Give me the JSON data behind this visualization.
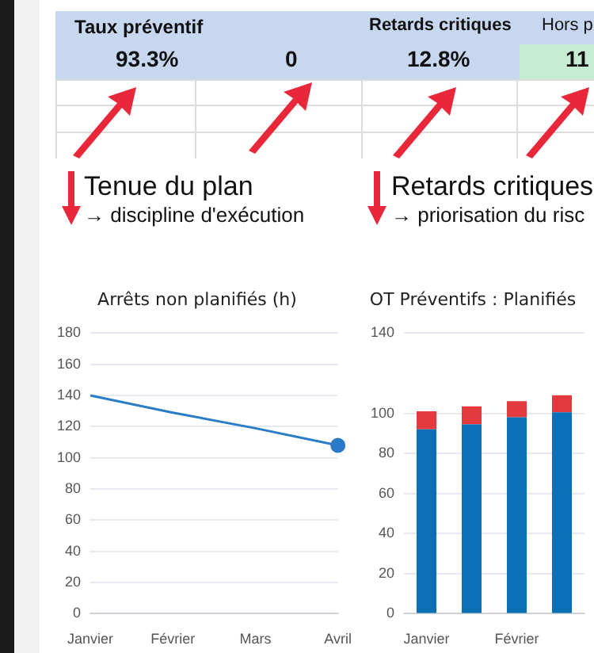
{
  "chart_data": [
    {
      "type": "other",
      "annotations": [
        "Taux préventif",
        "93.3%",
        "0",
        "Retards critiques",
        "12.8%",
        "Hors p",
        "11",
        "Tenue du plan",
        "→ discipline d'exécution",
        "Retards critiques",
        "→ priorisation du risc"
      ]
    },
    {
      "type": "line",
      "title": "Arrêts non planifiés (h)",
      "categories": [
        "Janvier",
        "Février",
        "Mars",
        "Avril"
      ],
      "series": [
        {
          "color": "#2a7bc8",
          "values": [
            140,
            129,
            119,
            108
          ],
          "marker": "none"
        },
        {
          "type": "scatter",
          "color": "#2a7bc8",
          "x": [
            "Avril"
          ],
          "values": [
            108
          ],
          "marker": "circle"
        }
      ],
      "ylim": [
        0,
        180
      ],
      "yticks": [
        0,
        20,
        40,
        60,
        80,
        100,
        120,
        140,
        160,
        180
      ],
      "grid": "y"
    },
    {
      "type": "bar",
      "title": "OT Préventifs : Planifiés",
      "categories": [
        "Janvier",
        null,
        "Février",
        null
      ],
      "stacked": true,
      "series": [
        {
          "color": "#0a6fb5",
          "values": [
            92,
            94.5,
            98,
            100.5
          ]
        },
        {
          "color": "#e23a3e",
          "values": [
            9,
            9,
            8,
            8.5
          ]
        }
      ],
      "ylim": [
        0,
        140
      ],
      "yticks": [
        0,
        20,
        40,
        60,
        80,
        100,
        140
      ],
      "grid": "y"
    }
  ]
}
